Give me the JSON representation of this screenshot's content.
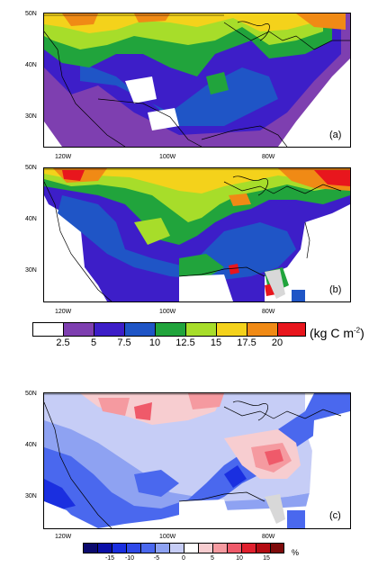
{
  "panels": [
    {
      "label": "(a)",
      "lat_ticks": [
        "50N",
        "40N",
        "30N"
      ],
      "lon_ticks": [
        "120W",
        "100W",
        "80W"
      ]
    },
    {
      "label": "(b)",
      "lat_ticks": [
        "50N",
        "40N",
        "30N"
      ],
      "lon_ticks": [
        "120W",
        "100W",
        "80W"
      ]
    },
    {
      "label": "(c)",
      "lat_ticks": [
        "50N",
        "40N",
        "30N"
      ],
      "lon_ticks": [
        "120W",
        "100W",
        "80W"
      ]
    }
  ],
  "colorbar_carbon": {
    "labels": [
      "2.5",
      "5",
      "7.5",
      "10",
      "12.5",
      "15",
      "17.5",
      "20"
    ],
    "unit_text": "(kg C m",
    "unit_exp": "-2",
    "unit_close": ")",
    "colors": [
      "#ffffff",
      "#7e3fb0",
      "#3d1ec8",
      "#1f55c6",
      "#21a43c",
      "#a7dd2a",
      "#f4d21b",
      "#f08a15",
      "#e8161d"
    ]
  },
  "colorbar_percent": {
    "labels": [
      "-15",
      "-10",
      "-5",
      "0",
      "5",
      "10",
      "15"
    ],
    "unit": "%",
    "colors": [
      "#0b0a6e",
      "#0a0fa8",
      "#1a2fe0",
      "#4a68ee",
      "#8ea2f2",
      "#c6cdf6",
      "#ffffff",
      "#f7cdd0",
      "#f59aa0",
      "#ef5a6a",
      "#e0202e",
      "#b40b12",
      "#7e0a0a"
    ]
  }
}
